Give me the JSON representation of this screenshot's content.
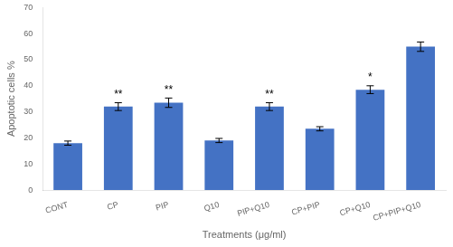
{
  "chart_data": {
    "type": "bar",
    "categories": [
      "CONT",
      "CP",
      "PIP",
      "Q10",
      "PIP+Q10",
      "CP+PIP",
      "CP+Q10",
      "CP+PIP+Q10"
    ],
    "values": [
      18.0,
      32.0,
      33.5,
      19.0,
      32.0,
      23.5,
      38.5,
      55.0
    ],
    "errors": [
      0.8,
      1.5,
      1.8,
      0.8,
      1.5,
      0.8,
      1.5,
      1.8
    ],
    "color": "#4472C4",
    "annotations": [
      {
        "category": "CP",
        "text": "**"
      },
      {
        "category": "PIP",
        "text": "**"
      },
      {
        "category": "PIP+Q10",
        "text": "**"
      },
      {
        "category": "CP+Q10",
        "text": "*"
      }
    ],
    "ylabel": "Apoptotic cells %",
    "xlabel": "Treatments (μg/ml)",
    "ylim": [
      0,
      70
    ],
    "yticks": [
      0,
      10,
      20,
      30,
      40,
      50,
      60,
      70
    ],
    "grid": false
  }
}
